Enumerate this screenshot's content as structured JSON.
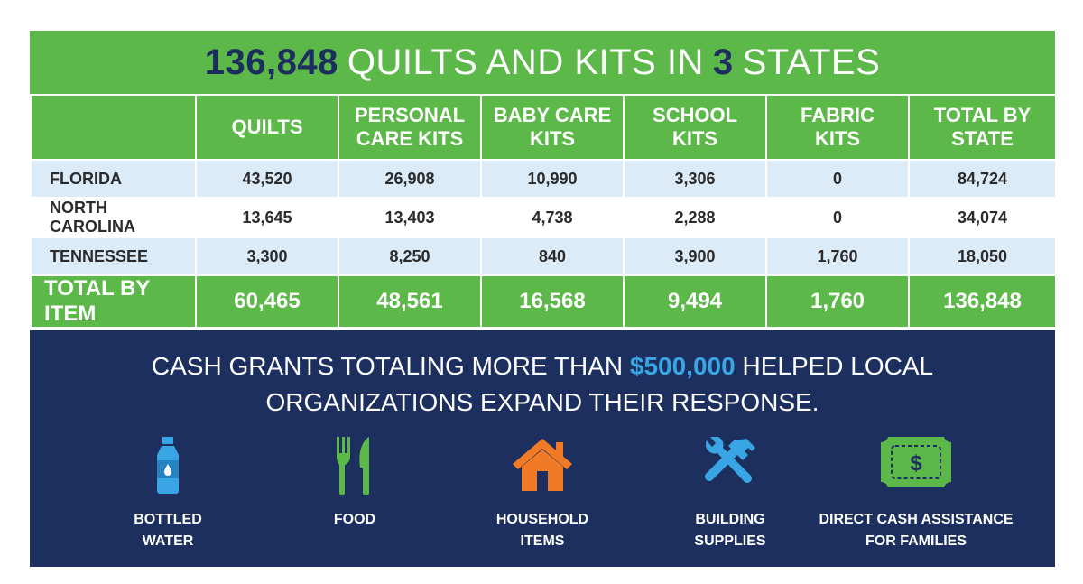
{
  "header": {
    "count": "136,848",
    "mid": "QUILTS AND KITS IN",
    "states_num": "3",
    "end": "STATES"
  },
  "table": {
    "columns": [
      "",
      "QUILTS",
      "PERSONAL\nCARE KITS",
      "BABY CARE\nKITS",
      "SCHOOL\nKITS",
      "FABRIC\nKITS",
      "TOTAL BY\nSTATE"
    ],
    "rows": [
      {
        "label": "FLORIDA",
        "values": [
          "43,520",
          "26,908",
          "10,990",
          "3,306",
          "0",
          "84,724"
        ]
      },
      {
        "label": "NORTH CAROLINA",
        "values": [
          "13,645",
          "13,403",
          "4,738",
          "2,288",
          "0",
          "34,074"
        ]
      },
      {
        "label": "TENNESSEE",
        "values": [
          "3,300",
          "8,250",
          "840",
          "3,900",
          "1,760",
          "18,050"
        ]
      }
    ],
    "total": {
      "label": "TOTAL BY ITEM",
      "values": [
        "60,465",
        "48,561",
        "16,568",
        "9,494",
        "1,760",
        "136,848"
      ]
    }
  },
  "cash": {
    "line1_a": "CASH GRANTS TOTALING MORE THAN",
    "amount": "$500,000",
    "line1_b": "HELPED LOCAL",
    "line2": "ORGANIZATIONS EXPAND THEIR RESPONSE.",
    "items": [
      {
        "icon": "water-bottle-icon",
        "line1": "BOTTLED",
        "line2": "WATER",
        "color": "#3aa5e4"
      },
      {
        "icon": "fork-knife-icon",
        "line1": "FOOD",
        "line2": "",
        "color": "#5cb848"
      },
      {
        "icon": "house-icon",
        "line1": "HOUSEHOLD",
        "line2": "ITEMS",
        "color": "#f07a25"
      },
      {
        "icon": "tools-icon",
        "line1": "BUILDING",
        "line2": "SUPPLIES",
        "color": "#3aa5e4"
      },
      {
        "icon": "cash-icon",
        "line1": "DIRECT CASH ASSISTANCE",
        "line2": "FOR FAMILIES",
        "color": "#5cb848"
      }
    ]
  },
  "colors": {
    "green": "#5cb848",
    "navy": "#1d2f5f",
    "light_blue_row": "#dcebf8",
    "accent_blue": "#3aa5e4",
    "orange": "#f07a25"
  }
}
